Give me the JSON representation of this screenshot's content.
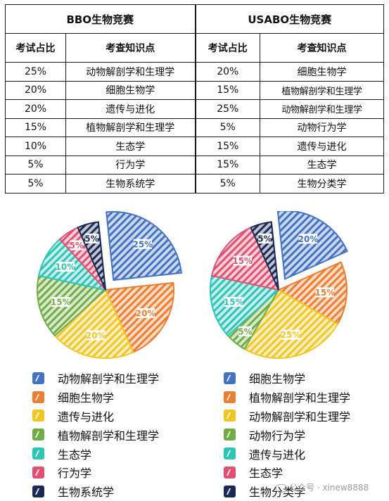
{
  "table": {
    "bbo_title": "BBO生物竞赛",
    "usabo_title": "USABO生物竞赛",
    "col_percent": "考试占比",
    "col_topic": "考查知识点",
    "rows": [
      {
        "bbo_pct": "25%",
        "bbo_topic": "动物解剖学和生理学",
        "usabo_pct": "20%",
        "usabo_topic": "细胞生物学"
      },
      {
        "bbo_pct": "20%",
        "bbo_topic": "细胞生物学",
        "usabo_pct": "15%",
        "usabo_topic": "植物解剖学和生理学"
      },
      {
        "bbo_pct": "20%",
        "bbo_topic": "遗传与进化",
        "usabo_pct": "25%",
        "usabo_topic": "动物解剖学和生理学"
      },
      {
        "bbo_pct": "15%",
        "bbo_topic": "植物解剖学和生理学",
        "usabo_pct": "5%",
        "usabo_topic": "动物行为学"
      },
      {
        "bbo_pct": "10%",
        "bbo_topic": "生态学",
        "usabo_pct": "15%",
        "usabo_topic": "遗传与进化"
      },
      {
        "bbo_pct": "5%",
        "bbo_topic": "行为学",
        "usabo_pct": "15%",
        "usabo_topic": "生态学"
      },
      {
        "bbo_pct": "5%",
        "bbo_topic": "生物系统学",
        "usabo_pct": "5%",
        "usabo_topic": "生物分类学"
      }
    ]
  },
  "chart_data": [
    {
      "type": "pie",
      "categories": [
        "动物解剖学和生理学",
        "细胞生物学",
        "遗传与进化",
        "植物解剖学和生理学",
        "生态学",
        "行为学",
        "生物系统学"
      ],
      "values": [
        25,
        20,
        20,
        15,
        10,
        5,
        5
      ],
      "labels": [
        "25%",
        "20%",
        "20%",
        "15%",
        "10%",
        "5%",
        "5%"
      ],
      "colors": [
        "#4472c4",
        "#ed7d31",
        "#f2c521",
        "#70ad47",
        "#2ec4b6",
        "#e05070",
        "#1b2a55"
      ],
      "exploded": [
        0
      ],
      "legend": "below"
    },
    {
      "type": "pie",
      "categories": [
        "细胞生物学",
        "植物解剖学和生理学",
        "动物解剖学和生理学",
        "动物行为学",
        "遗传与进化",
        "生态学",
        "生物分类学"
      ],
      "values": [
        20,
        15,
        25,
        5,
        15,
        15,
        5
      ],
      "labels": [
        "20%",
        "15%",
        "25%",
        "5%",
        "15%",
        "15%",
        "5%"
      ],
      "colors": [
        "#4472c4",
        "#ed7d31",
        "#f2c521",
        "#70ad47",
        "#2ec4b6",
        "#e05070",
        "#1b2a55"
      ],
      "exploded": [
        0
      ],
      "legend": "below"
    }
  ],
  "watermark": "公众号 · xinew8888"
}
